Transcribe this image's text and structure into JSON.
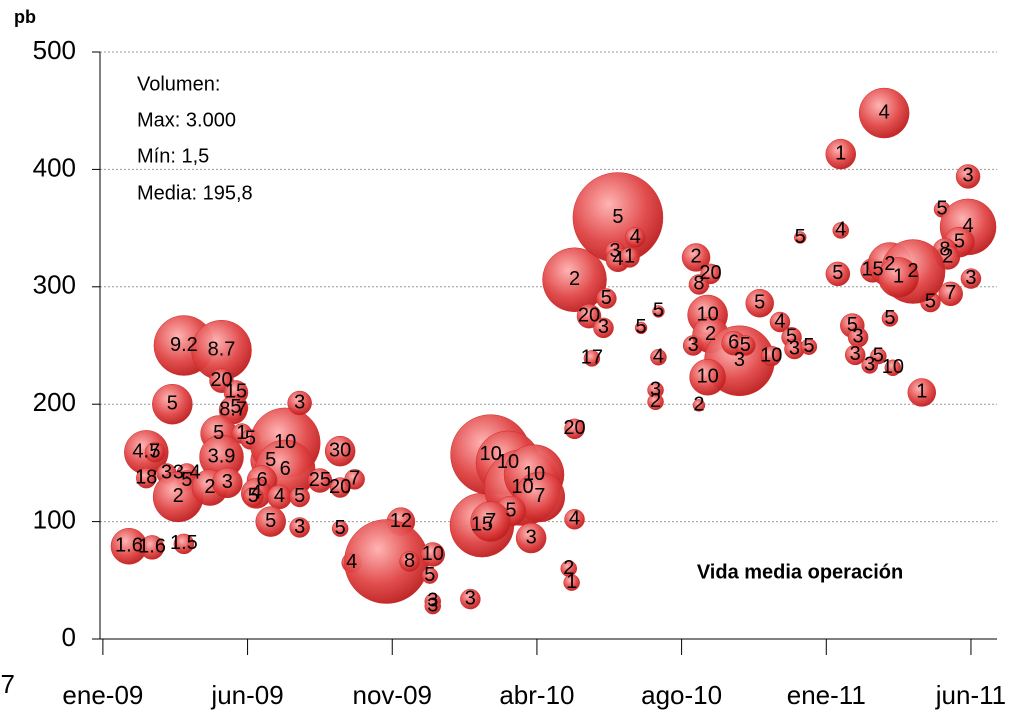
{
  "chart_data": {
    "type": "bubble",
    "ylabel": "pb",
    "annotations": [
      "Volumen:",
      "Max: 3.000",
      "Mín: 1,5",
      "Media: 195,8"
    ],
    "note": "Vida media operación",
    "color": "#d42a2a",
    "grid": true,
    "xlim": [
      -0.1,
      30.9
    ],
    "ylim": [
      0,
      500
    ],
    "yticks": [
      0,
      100,
      200,
      300,
      400,
      500
    ],
    "xticks": [
      {
        "value": -5,
        "label": "7"
      },
      {
        "value": 0,
        "label": "ene-09"
      },
      {
        "value": 5,
        "label": "jun-09"
      },
      {
        "value": 10,
        "label": "nov-09"
      },
      {
        "value": 15,
        "label": "abr-10"
      },
      {
        "value": 20,
        "label": "ago-10"
      },
      {
        "value": 25,
        "label": "ene-11"
      },
      {
        "value": 30,
        "label": "jun-11"
      }
    ],
    "series": [
      {
        "x": [
          0.9,
          1.7,
          2.8,
          1.5,
          1.8,
          1.5,
          2.2,
          2.9,
          2.9,
          2.6,
          2.4,
          2.8,
          4.1,
          4.1,
          4.6,
          4.6,
          4.5,
          4.0,
          4.8,
          5.1,
          4.1,
          3.7,
          4.3,
          5.8,
          6.3,
          6.3,
          5.5,
          5.3,
          5.2,
          6.1,
          6.8,
          5.8,
          6.8,
          6.8,
          8.2,
          7.5,
          8.2,
          8.7,
          8.2,
          10.3,
          8.6,
          9.8,
          10.6,
          11.4,
          11.3,
          11.4,
          11.4,
          12.7,
          13.1,
          13.4,
          14.0,
          14.5,
          14.9,
          15.1,
          14.1,
          13.4,
          14.8,
          16.3,
          16.3,
          16.1,
          16.2,
          16.3,
          17.8,
          18.4,
          17.7,
          17.8,
          18.2,
          17.4,
          16.8,
          17.3,
          16.9,
          18.6,
          19.2,
          19.2,
          19.1,
          19.1,
          20.6,
          20.4,
          20.5,
          21.0,
          20.6,
          20.9,
          21.0,
          22.0,
          21.8,
          22.2,
          20.9,
          22.7,
          23.4,
          23.8,
          23.1,
          23.9,
          24.4,
          24.1,
          25.5,
          25.5,
          27.0,
          29.9,
          29.0,
          29.9,
          29.6,
          29.1,
          29.2,
          30.0,
          29.3,
          28.6,
          27.2,
          25.4,
          26.6,
          27.2,
          28.0,
          27.5,
          25.9,
          26.1,
          26.0,
          26.8,
          26.5,
          27.3,
          28.3
        ],
        "values": [
          79,
          78,
          81,
          159,
          159,
          137,
          141,
          141,
          135,
          121,
          200,
          250,
          246,
          220,
          210,
          197,
          195,
          175,
          175,
          170,
          155,
          129,
          133,
          152,
          167,
          144,
          135,
          124,
          121,
          121,
          121,
          100,
          95,
          201,
          160,
          135,
          129,
          136,
          94,
          100,
          65,
          66,
          66,
          72,
          54,
          32,
          28,
          34,
          97,
          157,
          150,
          129,
          140,
          121,
          109,
          100,
          86,
          179,
          102,
          60,
          48,
          306,
          359,
          342,
          330,
          323,
          325,
          290,
          275,
          265,
          239,
          265,
          279,
          240,
          212,
          202,
          199,
          250,
          325,
          311,
          302,
          276,
          259,
          237,
          252,
          250,
          223,
          286,
          270,
          257,
          241,
          247,
          249,
          342,
          348,
          413,
          448,
          394,
          366,
          351,
          338,
          331,
          325,
          307,
          294,
          287,
          273,
          311,
          314,
          319,
          313,
          308,
          267,
          257,
          242,
          241,
          233,
          231,
          210
        ],
        "sizes": [
          350,
          114,
          64,
          578,
          64,
          64,
          64,
          64,
          64,
          787,
          457,
          1206,
          1206,
          114,
          114,
          114,
          178,
          350,
          64,
          64,
          578,
          350,
          216,
          457,
          1715,
          1206,
          216,
          216,
          64,
          114,
          64,
          216,
          64,
          114,
          216,
          114,
          64,
          64,
          29,
          178,
          64,
          2577,
          64,
          114,
          29,
          29,
          29,
          64,
          1399,
          2313,
          1399,
          2063,
          1206,
          787,
          216,
          457,
          216,
          64,
          64,
          29,
          29,
          1399,
          3000,
          64,
          64,
          114,
          64,
          64,
          114,
          64,
          29,
          7,
          7,
          29,
          29,
          29,
          7,
          64,
          178,
          64,
          64,
          457,
          350,
          1715,
          114,
          64,
          350,
          178,
          64,
          64,
          64,
          64,
          29,
          7,
          29,
          216,
          787,
          114,
          29,
          1028,
          216,
          114,
          114,
          64,
          114,
          64,
          29,
          114,
          114,
          578,
          1399,
          457,
          114,
          64,
          64,
          29,
          29,
          29,
          178
        ],
        "labels": [
          "1.6",
          "1.6",
          "1.5",
          "4.7",
          "5",
          "18",
          "3",
          "3.4",
          "5",
          "2",
          "5",
          "9.2",
          "8.7",
          "20",
          "15",
          "5",
          "8.7",
          "5",
          "1",
          "5",
          "3.9",
          "2",
          "3",
          "5",
          "10",
          "6",
          "6",
          "4",
          "5",
          "4",
          "5",
          "5",
          "3",
          "3",
          "30",
          "25",
          "20",
          "7",
          "5",
          "12",
          "4",
          null,
          "8",
          "10",
          "5",
          "3",
          "3",
          "3",
          "15",
          "10",
          "10",
          "10",
          "10",
          "7",
          "5",
          "7",
          "3",
          "20",
          "4",
          "2",
          "1",
          "2",
          "5",
          "4",
          "3",
          "4",
          "1",
          "5",
          "20",
          "3",
          "17",
          "5",
          "5",
          "4",
          "3",
          "2",
          "2",
          "3",
          "2",
          "20",
          "8",
          "10",
          "2",
          "3",
          "6",
          "5",
          "10",
          "5",
          "4",
          "5",
          "10",
          "3",
          "5",
          "5",
          "4",
          "1",
          "4",
          "3",
          "5",
          "4",
          "5",
          "8",
          "2",
          "3",
          "7",
          "5",
          "5",
          "5",
          "15",
          "2",
          "2",
          "1",
          "5",
          "3",
          "3",
          "5",
          "3",
          "10",
          "1"
        ]
      }
    ]
  }
}
